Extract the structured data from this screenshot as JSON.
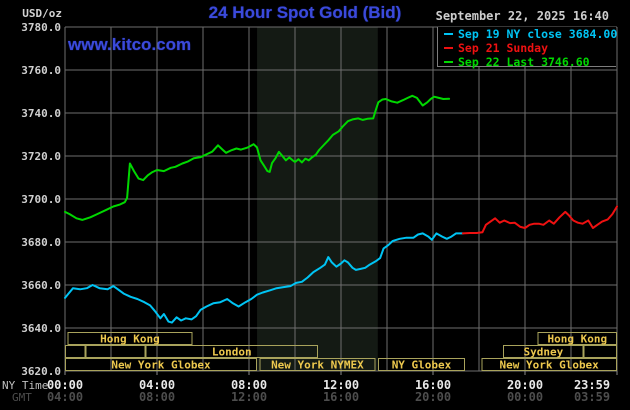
{
  "header": {
    "units_label": "USD/oz",
    "title": "24 Hour Spot Gold (Bid)",
    "datetime": "September 22, 2025 16:40",
    "watermark": "www.kitco.com"
  },
  "legend": {
    "items": [
      {
        "label": "Sep 19 NY close 3684.00",
        "color": "#00c4f4"
      },
      {
        "label": "Sep 21 Sunday",
        "color": "#ee1111"
      },
      {
        "label": "Sep 22 Last 3746.60",
        "color": "#00d800"
      }
    ]
  },
  "colors": {
    "background": "#000000",
    "grid": "#6e6e6e",
    "title_blue": "#3b4ada",
    "session_border": "#a9a35c",
    "session_text": "#edc84e",
    "nymex_shade": "#141a14",
    "y_tick_text": "#d0d0d0",
    "ny_tick_text": "#e8e8e8",
    "gmt_tick_text": "#4d4d4d",
    "axis_prefix_text": "#c0c0c0",
    "tick_mark": "#8a8a8a"
  },
  "axes": {
    "y_ticks": [
      "3780.0",
      "3760.0",
      "3740.0",
      "3720.0",
      "3700.0",
      "3680.0",
      "3660.0",
      "3640.0",
      "3620.0"
    ],
    "x_rows": [
      {
        "label": "NY Time",
        "ticks": [
          "00:00",
          "04:00",
          "08:00",
          "12:00",
          "16:00",
          "20:00",
          "23:59"
        ],
        "color": "#e8e8e8",
        "label_color": "#c0c0c0"
      },
      {
        "label": "GMT",
        "ticks": [
          "04:00",
          "08:00",
          "12:00",
          "16:00",
          "20:00",
          "00:00",
          "03:59"
        ],
        "color": "#4d4d4d",
        "label_color": "#4d4d4d"
      }
    ]
  },
  "sessions": {
    "rows": [
      [
        {
          "start": 0.1,
          "end": 5.55,
          "label": "Hong Kong"
        },
        {
          "start": 20.55,
          "end": 24,
          "label": "Hong Kong"
        }
      ],
      [
        {
          "start": 0,
          "end": 0.9,
          "label": ""
        },
        {
          "start": 0.9,
          "end": 3.5,
          "label": ""
        },
        {
          "start": 3.5,
          "end": 11.0,
          "label": "London"
        },
        {
          "start": 19.05,
          "end": 22.55,
          "label": "Sydney"
        },
        {
          "start": 22.55,
          "end": 24,
          "label": ""
        }
      ],
      [
        {
          "start": 0,
          "end": 8.35,
          "label": "New York Globex"
        },
        {
          "start": 8.45,
          "end": 13.5,
          "label": "New York NYMEX"
        },
        {
          "start": 13.6,
          "end": 17.4,
          "label": "NY Globex"
        },
        {
          "start": 18.1,
          "end": 24,
          "label": "New York Globex"
        }
      ]
    ]
  },
  "chart_data": {
    "type": "line",
    "title": "24 Hour Spot Gold (Bid)",
    "xlabel": "NY Time (hours, 00:00-23:59)",
    "ylabel": "USD/oz",
    "xlim": [
      0,
      24
    ],
    "ylim": [
      3620,
      3780
    ],
    "grid": "gridlines every 2 hours and every 20 USD",
    "legend_position": "top-right",
    "nymex_shade_hours": [
      8.35,
      13.6
    ],
    "series": [
      {
        "name": "Sep 19 NY close 3684.00",
        "color": "#00c4f4",
        "points": [
          [
            0,
            3654
          ],
          [
            0.15,
            3656
          ],
          [
            0.35,
            3658.5
          ],
          [
            0.65,
            3658
          ],
          [
            0.95,
            3658.5
          ],
          [
            1.2,
            3660
          ],
          [
            1.5,
            3658.5
          ],
          [
            1.85,
            3658
          ],
          [
            2.1,
            3659.5
          ],
          [
            2.3,
            3658
          ],
          [
            2.55,
            3656
          ],
          [
            2.85,
            3654.5
          ],
          [
            3.15,
            3653.5
          ],
          [
            3.45,
            3652
          ],
          [
            3.7,
            3650.5
          ],
          [
            3.9,
            3648
          ],
          [
            4.15,
            3644.5
          ],
          [
            4.3,
            3646.5
          ],
          [
            4.5,
            3643
          ],
          [
            4.65,
            3642.5
          ],
          [
            4.85,
            3645
          ],
          [
            5.05,
            3643.5
          ],
          [
            5.25,
            3644.5
          ],
          [
            5.5,
            3644
          ],
          [
            5.7,
            3645.5
          ],
          [
            5.9,
            3648.5
          ],
          [
            6.15,
            3650
          ],
          [
            6.45,
            3651.5
          ],
          [
            6.75,
            3652
          ],
          [
            7.05,
            3653.5
          ],
          [
            7.3,
            3651.5
          ],
          [
            7.55,
            3650
          ],
          [
            7.85,
            3652
          ],
          [
            8.1,
            3653.5
          ],
          [
            8.35,
            3655.5
          ],
          [
            8.6,
            3656.5
          ],
          [
            8.9,
            3657.5
          ],
          [
            9.2,
            3658.5
          ],
          [
            9.5,
            3659
          ],
          [
            9.8,
            3659.5
          ],
          [
            10.05,
            3661
          ],
          [
            10.3,
            3661.5
          ],
          [
            10.55,
            3663.5
          ],
          [
            10.8,
            3666
          ],
          [
            11.1,
            3668
          ],
          [
            11.3,
            3669.5
          ],
          [
            11.45,
            3673
          ],
          [
            11.6,
            3670.5
          ],
          [
            11.8,
            3668.5
          ],
          [
            12.0,
            3670
          ],
          [
            12.15,
            3671.5
          ],
          [
            12.3,
            3670.5
          ],
          [
            12.5,
            3668
          ],
          [
            12.65,
            3667
          ],
          [
            12.85,
            3667.5
          ],
          [
            13.05,
            3668
          ],
          [
            13.25,
            3669.5
          ],
          [
            13.5,
            3671
          ],
          [
            13.7,
            3672.5
          ],
          [
            13.85,
            3677
          ],
          [
            14.05,
            3678.5
          ],
          [
            14.25,
            3680.5
          ],
          [
            14.55,
            3681.5
          ],
          [
            14.85,
            3682
          ],
          [
            15.15,
            3682
          ],
          [
            15.35,
            3683.5
          ],
          [
            15.55,
            3684
          ],
          [
            15.8,
            3682.5
          ],
          [
            15.95,
            3681
          ],
          [
            16.15,
            3684
          ],
          [
            16.4,
            3682.5
          ],
          [
            16.6,
            3681.5
          ],
          [
            16.8,
            3682.5
          ],
          [
            17.0,
            3684
          ],
          [
            17.3,
            3684.0
          ]
        ]
      },
      {
        "name": "Sep 21 Sunday",
        "color": "#ee1111",
        "points": [
          [
            17.3,
            3684.0
          ],
          [
            17.6,
            3684.2
          ],
          [
            17.9,
            3684.2
          ],
          [
            18.15,
            3684.5
          ],
          [
            18.3,
            3688
          ],
          [
            18.5,
            3689.5
          ],
          [
            18.7,
            3691
          ],
          [
            18.9,
            3689
          ],
          [
            19.1,
            3690
          ],
          [
            19.35,
            3688.8
          ],
          [
            19.55,
            3689
          ],
          [
            19.8,
            3687
          ],
          [
            20.0,
            3686.5
          ],
          [
            20.2,
            3688
          ],
          [
            20.4,
            3688.5
          ],
          [
            20.6,
            3688.5
          ],
          [
            20.8,
            3688
          ],
          [
            21.05,
            3690
          ],
          [
            21.25,
            3688.5
          ],
          [
            21.5,
            3691.5
          ],
          [
            21.75,
            3694
          ],
          [
            21.9,
            3692.5
          ],
          [
            22.1,
            3690
          ],
          [
            22.3,
            3689
          ],
          [
            22.5,
            3688.5
          ],
          [
            22.75,
            3690
          ],
          [
            22.95,
            3686.5
          ],
          [
            23.15,
            3688
          ],
          [
            23.35,
            3689.5
          ],
          [
            23.6,
            3690.5
          ],
          [
            23.8,
            3693
          ],
          [
            24.0,
            3696.5
          ]
        ]
      },
      {
        "name": "Sep 22 Last 3746.60",
        "color": "#00d800",
        "points": [
          [
            0,
            3694
          ],
          [
            0.2,
            3693
          ],
          [
            0.5,
            3691
          ],
          [
            0.75,
            3690.3
          ],
          [
            1.1,
            3691.5
          ],
          [
            1.4,
            3693
          ],
          [
            1.8,
            3695
          ],
          [
            2.1,
            3696.5
          ],
          [
            2.4,
            3697.5
          ],
          [
            2.6,
            3698.5
          ],
          [
            2.7,
            3700.5
          ],
          [
            2.82,
            3716.5
          ],
          [
            3.0,
            3713
          ],
          [
            3.2,
            3709.5
          ],
          [
            3.4,
            3708.8
          ],
          [
            3.6,
            3711
          ],
          [
            3.8,
            3712.5
          ],
          [
            4.0,
            3713.5
          ],
          [
            4.3,
            3713
          ],
          [
            4.6,
            3714.5
          ],
          [
            4.8,
            3715
          ],
          [
            5.1,
            3716.5
          ],
          [
            5.35,
            3717.5
          ],
          [
            5.6,
            3719
          ],
          [
            5.9,
            3719.5
          ],
          [
            6.1,
            3720.5
          ],
          [
            6.4,
            3722
          ],
          [
            6.65,
            3725
          ],
          [
            6.85,
            3723
          ],
          [
            7.0,
            3721.5
          ],
          [
            7.2,
            3722.5
          ],
          [
            7.45,
            3723.5
          ],
          [
            7.65,
            3723
          ],
          [
            7.95,
            3724
          ],
          [
            8.2,
            3725.5
          ],
          [
            8.35,
            3724
          ],
          [
            8.5,
            3718
          ],
          [
            8.65,
            3715.5
          ],
          [
            8.8,
            3713
          ],
          [
            8.9,
            3712.6
          ],
          [
            9.0,
            3716.7
          ],
          [
            9.15,
            3719
          ],
          [
            9.3,
            3721.9
          ],
          [
            9.45,
            3720
          ],
          [
            9.6,
            3718
          ],
          [
            9.75,
            3719.3
          ],
          [
            9.9,
            3718
          ],
          [
            10.0,
            3717.2
          ],
          [
            10.15,
            3718.5
          ],
          [
            10.3,
            3717
          ],
          [
            10.45,
            3718.8
          ],
          [
            10.6,
            3718
          ],
          [
            10.75,
            3719.5
          ],
          [
            10.9,
            3720.5
          ],
          [
            11.05,
            3722.8
          ],
          [
            11.25,
            3725.1
          ],
          [
            11.45,
            3727.3
          ],
          [
            11.65,
            3729.8
          ],
          [
            11.9,
            3731.5
          ],
          [
            12.1,
            3734
          ],
          [
            12.3,
            3736.2
          ],
          [
            12.5,
            3737
          ],
          [
            12.75,
            3737.5
          ],
          [
            12.95,
            3736.8
          ],
          [
            13.15,
            3737.3
          ],
          [
            13.4,
            3737.5
          ],
          [
            13.5,
            3741
          ],
          [
            13.62,
            3745
          ],
          [
            13.8,
            3746.3
          ],
          [
            13.95,
            3746.5
          ],
          [
            14.2,
            3745.4
          ],
          [
            14.45,
            3744.8
          ],
          [
            14.7,
            3746
          ],
          [
            14.9,
            3747
          ],
          [
            15.1,
            3748
          ],
          [
            15.3,
            3747
          ],
          [
            15.55,
            3743.5
          ],
          [
            15.75,
            3745
          ],
          [
            15.9,
            3746.5
          ],
          [
            16.05,
            3747.6
          ],
          [
            16.25,
            3747
          ],
          [
            16.45,
            3746.5
          ],
          [
            16.7,
            3746.6
          ]
        ]
      }
    ]
  }
}
